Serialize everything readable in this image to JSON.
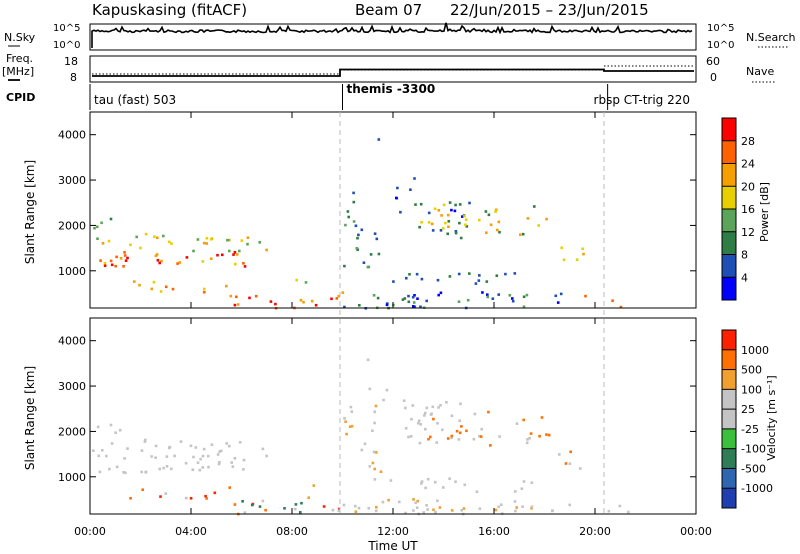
{
  "header": {
    "station": "Kapuskasing (fitACF)",
    "beam": "Beam 07",
    "date_range": "22/Jun/2015 – 23/Jun/2015"
  },
  "noise_panel": {
    "left_label": "N.Sky",
    "right_label": "N.Search",
    "left_ticks": [
      "10^5",
      "10^0"
    ],
    "right_ticks": [
      "10^5",
      "10^0"
    ]
  },
  "freq_panel": {
    "left_label_1": "Freq.",
    "left_label_2": "[MHz]",
    "right_label": "Nave",
    "left_ticks": [
      "18",
      "8"
    ],
    "right_ticks": [
      "60",
      "0"
    ]
  },
  "cpid": {
    "label": "CPID",
    "segments": [
      {
        "name": "tau (fast) 503",
        "start_h": 0,
        "end_h": 10
      },
      {
        "name": "themis -3300",
        "start_h": 10,
        "end_h": 20.5
      },
      {
        "name": "rbsp CT-trig 220",
        "start_h": 20.5,
        "end_h": 24
      }
    ]
  },
  "axes": {
    "ylabel": "Slant Range [km]",
    "xlabel": "Time UT",
    "yticks": [
      "4000",
      "3000",
      "2000",
      "1000"
    ],
    "xticks": [
      "00:00",
      "04:00",
      "08:00",
      "12:00",
      "16:00",
      "20:00",
      "00:00"
    ]
  },
  "chart_data": [
    {
      "type": "heatmap",
      "name": "power",
      "x_range_hours": [
        0,
        24
      ],
      "y_range_km": [
        180,
        4500
      ],
      "colorbar_label": "Power [dB]",
      "colorbar_ticks": [
        "28",
        "24",
        "20",
        "16",
        "12",
        "8",
        "4"
      ],
      "colors": [
        "#0000ff",
        "#1e4fb5",
        "#2f7d46",
        "#5aa55a",
        "#e8d000",
        "#f5a000",
        "#ff6000",
        "#ff0000"
      ]
    },
    {
      "type": "heatmap",
      "name": "velocity",
      "x_range_hours": [
        0,
        24
      ],
      "y_range_km": [
        180,
        4500
      ],
      "colorbar_label": "Velocity [m s⁻¹]",
      "colorbar_ticks": [
        "1000",
        "500",
        "100",
        "25",
        "-25",
        "-100",
        "-500",
        "-1000"
      ],
      "colors": [
        "#1f3fb0",
        "#2e66b0",
        "#2e7d55",
        "#3cbf3c",
        "#c4c4c4",
        "#c4c4c4",
        "#f0a030",
        "#ff7000",
        "#ff2000"
      ]
    }
  ]
}
